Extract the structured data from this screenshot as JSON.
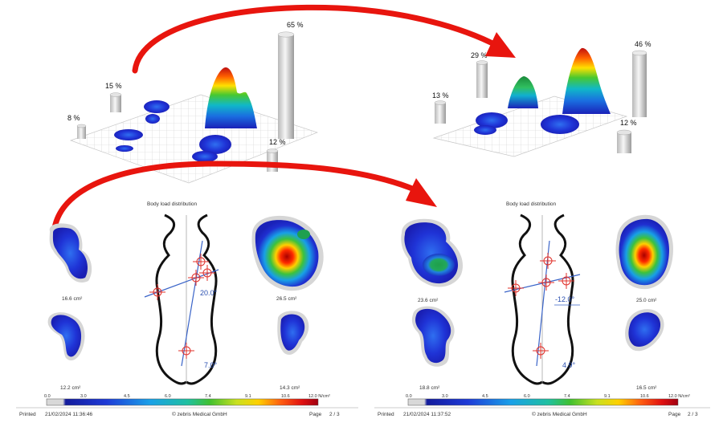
{
  "top_left_plot": {
    "percentages": [
      "8 %",
      "15 %",
      "65 %",
      "12 %"
    ]
  },
  "top_right_plot": {
    "percentages": [
      "13 %",
      "29 %",
      "46 %",
      "12 %"
    ]
  },
  "left_report": {
    "title": "Body load distribution",
    "areas": [
      "16.6 cm²",
      "26.5 cm²",
      "12.2 cm²",
      "14.3 cm²"
    ],
    "angles": [
      "20.0°",
      "7.0°"
    ],
    "scale_ticks": [
      "0.0",
      "3.0",
      "4.5",
      "6.0",
      "7.4",
      "9.1",
      "10.6",
      "12.0 N/cm²"
    ],
    "footer": {
      "printed_label": "Printed",
      "printed_value": "21/02/2024 11:36:46",
      "copyright": "© zebris Medical GmbH",
      "page_label": "Page",
      "page_value": "2 / 3"
    }
  },
  "right_report": {
    "title": "Body load distribution",
    "areas": [
      "23.6 cm²",
      "25.0 cm²",
      "18.8 cm²",
      "16.5 cm²"
    ],
    "angles": [
      "-12.0°",
      "4.9°"
    ],
    "scale_ticks": [
      "0.0",
      "3.0",
      "4.5",
      "6.0",
      "7.4",
      "9.1",
      "10.6",
      "12.0 N/cm²"
    ],
    "footer": {
      "printed_label": "Printed",
      "printed_value": "21/02/2024 11:37:52",
      "copyright": "© zebris Medical GmbH",
      "page_label": "Page",
      "page_value": "2 / 3"
    }
  },
  "colors": {
    "arrow": "#e8150e",
    "body_outline": "#111111",
    "axis_line": "#3a64c8",
    "cross_marker": "#e0302a"
  }
}
